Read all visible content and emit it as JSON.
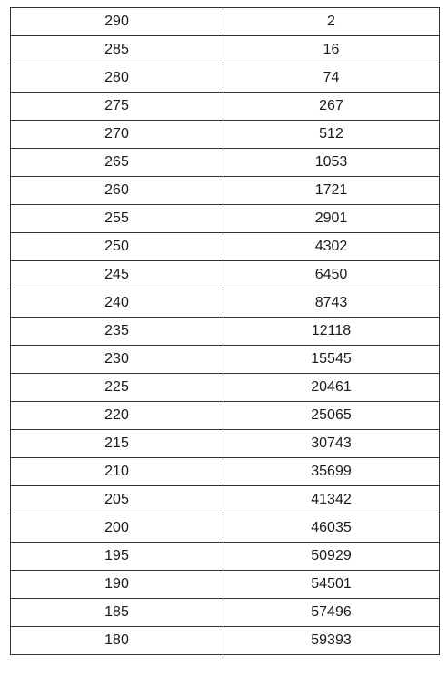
{
  "table": {
    "rows": [
      {
        "score": "290",
        "count": "2"
      },
      {
        "score": "285",
        "count": "16"
      },
      {
        "score": "280",
        "count": "74"
      },
      {
        "score": "275",
        "count": "267"
      },
      {
        "score": "270",
        "count": "512"
      },
      {
        "score": "265",
        "count": "1053"
      },
      {
        "score": "260",
        "count": "1721"
      },
      {
        "score": "255",
        "count": "2901"
      },
      {
        "score": "250",
        "count": "4302"
      },
      {
        "score": "245",
        "count": "6450"
      },
      {
        "score": "240",
        "count": "8743"
      },
      {
        "score": "235",
        "count": "12118"
      },
      {
        "score": "230",
        "count": "15545"
      },
      {
        "score": "225",
        "count": "20461"
      },
      {
        "score": "220",
        "count": "25065"
      },
      {
        "score": "215",
        "count": "30743"
      },
      {
        "score": "210",
        "count": "35699"
      },
      {
        "score": "205",
        "count": "41342"
      },
      {
        "score": "200",
        "count": "46035"
      },
      {
        "score": "195",
        "count": "50929"
      },
      {
        "score": "190",
        "count": "54501"
      },
      {
        "score": "185",
        "count": "57496"
      },
      {
        "score": "180",
        "count": "59393"
      }
    ]
  }
}
